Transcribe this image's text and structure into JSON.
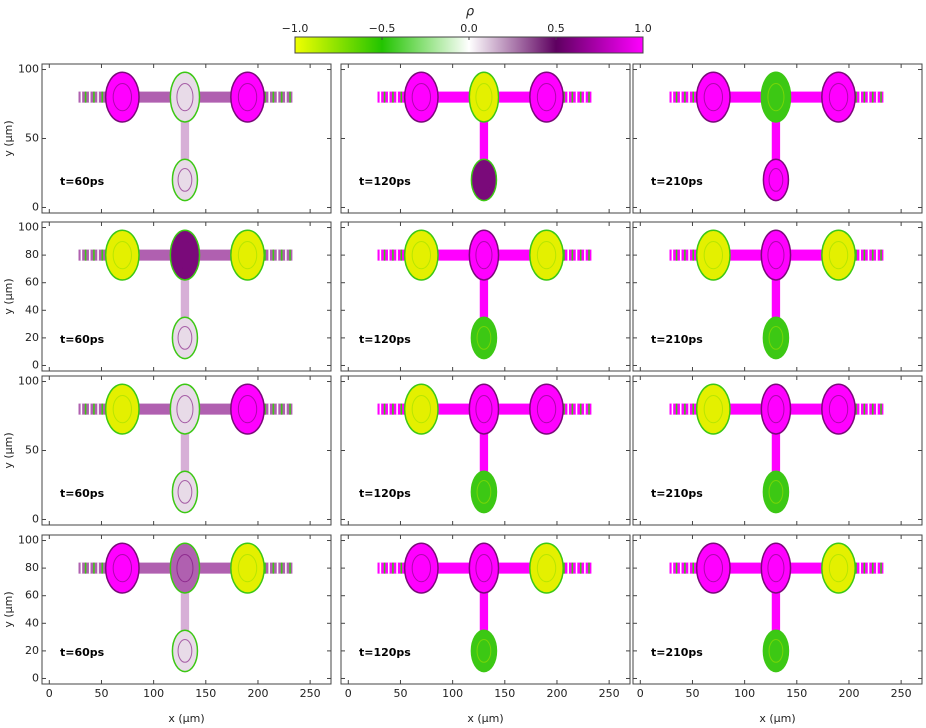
{
  "colorbar": {
    "title": "ρ",
    "lim": [
      -1,
      1
    ],
    "colors": [
      "#f0ff00",
      "#22c400",
      "#ffffff",
      "#5e0060",
      "#ff00ff"
    ],
    "ticks": [
      {
        "value": -1,
        "label": "−1.0"
      },
      {
        "value": -0.5,
        "label": "−0.5"
      },
      {
        "value": 0,
        "label": "0.0"
      },
      0.5,
      {
        "value": 1,
        "label": "1.0"
      }
    ]
  },
  "chart_data": [
    {
      "type": "field",
      "annotation": "t=60ps",
      "ylabel": "y (μm)",
      "xlim": [
        -7,
        270
      ],
      "ylim": [
        -4,
        104
      ],
      "xticks": [
        0,
        50,
        100,
        150,
        200,
        250
      ],
      "yticks": [
        0,
        50,
        100
      ]
    },
    {
      "type": "field",
      "annotation": "t=120ps",
      "xlim": [
        -7,
        270
      ],
      "ylim": [
        -4,
        104
      ],
      "xticks": [
        0,
        50,
        100,
        150,
        200,
        250
      ],
      "yticks": [
        0,
        50,
        100
      ]
    },
    {
      "type": "field",
      "annotation": "t=210ps",
      "xlim": [
        -7,
        270
      ],
      "ylim": [
        -4,
        104
      ],
      "xticks": [
        0,
        50,
        100,
        150,
        200,
        250
      ],
      "yticks": [
        0,
        50,
        100
      ]
    },
    {
      "type": "field",
      "annotation": "t=60ps",
      "ylabel": "y (μm)",
      "xlim": [
        -7,
        270
      ],
      "ylim": [
        -4,
        104
      ],
      "xticks": [
        0,
        50,
        100,
        150,
        200,
        250
      ],
      "yticks": [
        0,
        20,
        40,
        60,
        80,
        100
      ]
    },
    {
      "type": "field",
      "annotation": "t=120ps",
      "xlim": [
        -7,
        270
      ],
      "ylim": [
        -4,
        104
      ],
      "xticks": [
        0,
        50,
        100,
        150,
        200,
        250
      ],
      "yticks": [
        0,
        20,
        40,
        60,
        80,
        100
      ]
    },
    {
      "type": "field",
      "annotation": "t=210ps",
      "xlim": [
        -7,
        270
      ],
      "ylim": [
        -4,
        104
      ],
      "xticks": [
        0,
        50,
        100,
        150,
        200,
        250
      ],
      "yticks": [
        0,
        20,
        40,
        60,
        80,
        100
      ]
    },
    {
      "type": "field",
      "annotation": "t=60ps",
      "ylabel": "y (μm)",
      "xlim": [
        -7,
        270
      ],
      "ylim": [
        -4,
        104
      ],
      "xticks": [
        0,
        50,
        100,
        150,
        200,
        250
      ],
      "yticks": [
        0,
        50,
        100
      ]
    },
    {
      "type": "field",
      "annotation": "t=120ps",
      "xlim": [
        -7,
        270
      ],
      "ylim": [
        -4,
        104
      ],
      "xticks": [
        0,
        50,
        100,
        150,
        200,
        250
      ],
      "yticks": [
        0,
        50,
        100
      ]
    },
    {
      "type": "field",
      "annotation": "t=210ps",
      "xlim": [
        -7,
        270
      ],
      "ylim": [
        -4,
        104
      ],
      "xticks": [
        0,
        50,
        100,
        150,
        200,
        250
      ],
      "yticks": [
        0,
        50,
        100
      ]
    },
    {
      "type": "field",
      "annotation": "t=60ps",
      "ylabel": "y (μm)",
      "xlabel": "x (μm)",
      "xlim": [
        -7,
        270
      ],
      "ylim": [
        -4,
        104
      ],
      "xticks": [
        0,
        50,
        100,
        150,
        200,
        250
      ],
      "yticks": [
        0,
        20,
        40,
        60,
        80,
        100
      ]
    },
    {
      "type": "field",
      "annotation": "t=120ps",
      "xlabel": "x (μm)",
      "xlim": [
        -7,
        270
      ],
      "ylim": [
        -4,
        104
      ],
      "xticks": [
        0,
        50,
        100,
        150,
        200,
        250
      ],
      "yticks": [
        0,
        20,
        40,
        60,
        80,
        100
      ]
    },
    {
      "type": "field",
      "annotation": "t=210ps",
      "xlabel": "x (μm)",
      "xlim": [
        -7,
        270
      ],
      "ylim": [
        -4,
        104
      ],
      "xticks": [
        0,
        50,
        100,
        150,
        200,
        250
      ],
      "yticks": [
        0,
        20,
        40,
        60,
        80,
        100
      ]
    }
  ]
}
